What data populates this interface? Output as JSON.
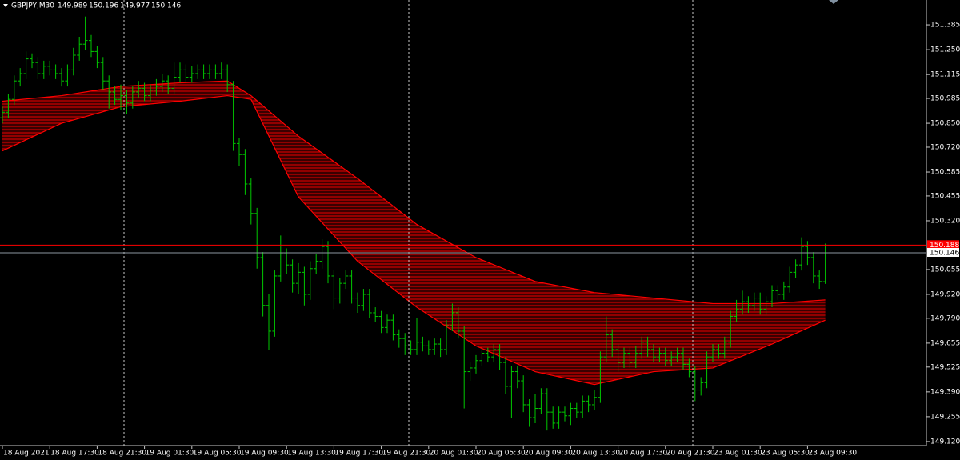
{
  "chart_data": {
    "type": "ohlc",
    "symbol": "GBPJPY,M30",
    "color": "#00c800",
    "open": [
      150.88,
      150.91,
      150.98,
      151.08,
      151.12,
      151.2,
      151.18,
      151.12,
      151.16,
      151.14,
      151.12,
      151.08,
      151.14,
      151.22,
      151.28,
      151.3,
      151.24,
      151.18,
      151.08,
      151.02,
      150.98,
      151.0,
      150.96,
      151.02,
      151.04,
      151.0,
      151.03,
      151.05,
      151.08,
      151.04,
      151.1,
      151.14,
      151.1,
      151.12,
      151.14,
      151.12,
      151.14,
      151.12,
      151.14,
      151.06,
      150.74,
      150.68,
      150.52,
      150.36,
      150.12,
      149.86,
      149.72,
      150.02,
      150.14,
      150.08,
      149.98,
      150.04,
      149.92,
      150.06,
      150.1,
      150.18,
      150.02,
      149.9,
      149.98,
      150.02,
      149.9,
      149.86,
      149.92,
      149.82,
      149.8,
      149.74,
      149.78,
      149.7,
      149.68,
      149.64,
      149.62,
      149.66,
      149.64,
      149.62,
      149.65,
      149.62,
      149.75,
      149.82,
      149.72,
      149.5,
      149.52,
      149.56,
      149.6,
      149.58,
      149.62,
      149.55,
      149.42,
      149.5,
      149.45,
      149.32,
      149.25,
      149.3,
      149.38,
      149.28,
      149.22,
      149.28,
      149.26,
      149.3,
      149.28,
      149.34,
      149.32,
      149.36,
      149.58,
      149.7,
      149.62,
      149.55,
      149.6,
      149.55,
      149.6,
      149.66,
      149.62,
      149.58,
      149.6,
      149.56,
      149.58,
      149.6,
      149.54,
      149.5,
      149.4,
      149.44,
      149.58,
      149.62,
      149.6,
      149.66,
      149.8,
      149.84,
      149.88,
      149.86,
      149.9,
      149.84,
      149.88,
      149.94,
      149.92,
      149.96,
      150.04,
      150.08,
      150.18,
      150.12,
      150.02,
      149.989
    ],
    "high": [
      150.94,
      151.01,
      151.11,
      151.15,
      151.24,
      151.23,
      151.21,
      151.19,
      151.19,
      151.17,
      151.15,
      151.17,
      151.26,
      151.32,
      151.43,
      151.33,
      151.27,
      151.21,
      151.11,
      151.05,
      151.06,
      151.03,
      151.05,
      151.08,
      151.07,
      151.06,
      151.09,
      151.12,
      151.11,
      151.18,
      151.18,
      151.17,
      151.16,
      151.17,
      151.17,
      151.17,
      151.17,
      151.18,
      151.17,
      151.08,
      150.77,
      150.71,
      150.55,
      150.39,
      150.15,
      149.92,
      150.05,
      150.24,
      150.17,
      150.11,
      150.09,
      150.07,
      150.1,
      150.14,
      150.22,
      150.21,
      150.05,
      150.01,
      150.05,
      150.05,
      149.93,
      149.95,
      149.95,
      149.85,
      149.83,
      149.81,
      149.81,
      149.73,
      149.71,
      149.67,
      149.79,
      149.69,
      149.67,
      149.68,
      149.68,
      149.78,
      149.87,
      149.85,
      149.75,
      149.55,
      149.59,
      149.63,
      149.63,
      149.65,
      149.65,
      149.58,
      149.53,
      149.53,
      149.48,
      149.35,
      149.38,
      149.41,
      149.41,
      149.31,
      149.31,
      149.31,
      149.33,
      149.33,
      149.37,
      149.37,
      149.4,
      149.61,
      149.8,
      149.73,
      149.65,
      149.63,
      149.63,
      149.64,
      149.69,
      149.69,
      149.65,
      149.63,
      149.63,
      149.61,
      149.63,
      149.63,
      149.57,
      149.53,
      149.47,
      149.61,
      149.65,
      149.65,
      149.69,
      149.83,
      149.89,
      149.94,
      149.91,
      149.93,
      149.93,
      149.91,
      149.97,
      149.97,
      149.99,
      150.07,
      150.11,
      150.23,
      150.21,
      150.15,
      150.05,
      150.196
    ],
    "low": [
      150.85,
      150.88,
      150.95,
      151.05,
      151.09,
      151.15,
      151.09,
      151.09,
      151.11,
      151.09,
      151.05,
      151.05,
      151.11,
      151.19,
      151.25,
      151.21,
      151.15,
      151.03,
      150.93,
      150.95,
      150.92,
      150.9,
      150.93,
      150.99,
      150.97,
      150.97,
      151.0,
      151.02,
      151.01,
      151.01,
      151.07,
      151.07,
      151.07,
      151.09,
      151.09,
      151.09,
      151.09,
      151.09,
      151.02,
      150.7,
      150.62,
      150.46,
      150.3,
      150.06,
      149.8,
      149.62,
      149.69,
      149.99,
      150.03,
      149.93,
      149.92,
      149.86,
      149.89,
      150.03,
      150.06,
      149.98,
      149.84,
      149.87,
      149.95,
      149.87,
      149.82,
      149.83,
      149.79,
      149.77,
      149.71,
      149.71,
      149.67,
      149.63,
      149.59,
      149.59,
      149.59,
      149.61,
      149.59,
      149.59,
      149.58,
      149.59,
      149.72,
      149.68,
      149.3,
      149.45,
      149.49,
      149.53,
      149.55,
      149.55,
      149.51,
      149.38,
      149.25,
      149.41,
      149.28,
      149.2,
      149.22,
      149.27,
      149.18,
      149.19,
      149.19,
      149.23,
      149.21,
      149.25,
      149.25,
      149.28,
      149.29,
      149.33,
      149.55,
      149.58,
      149.5,
      149.52,
      149.52,
      149.52,
      149.57,
      149.58,
      149.55,
      149.55,
      149.53,
      149.53,
      149.55,
      149.51,
      149.47,
      149.34,
      149.37,
      149.41,
      149.55,
      149.57,
      149.57,
      149.63,
      149.77,
      149.81,
      149.82,
      149.83,
      149.81,
      149.81,
      149.85,
      149.89,
      149.89,
      149.93,
      150.01,
      150.05,
      150.08,
      149.98,
      149.95,
      149.977
    ],
    "close": [
      150.91,
      150.98,
      151.08,
      151.12,
      151.2,
      151.18,
      151.12,
      151.16,
      151.14,
      151.12,
      151.08,
      151.14,
      151.22,
      151.28,
      151.3,
      151.24,
      151.18,
      151.08,
      151.02,
      150.98,
      151.0,
      150.96,
      151.02,
      151.04,
      151.0,
      151.03,
      151.05,
      151.08,
      151.04,
      151.1,
      151.14,
      151.1,
      151.12,
      151.14,
      151.12,
      151.14,
      151.12,
      151.14,
      151.06,
      150.74,
      150.68,
      150.52,
      150.36,
      150.12,
      149.86,
      149.72,
      150.02,
      150.14,
      150.08,
      149.98,
      150.04,
      149.92,
      150.06,
      150.1,
      150.18,
      150.02,
      149.9,
      149.98,
      150.02,
      149.9,
      149.86,
      149.92,
      149.82,
      149.8,
      149.74,
      149.78,
      149.7,
      149.68,
      149.64,
      149.62,
      149.66,
      149.64,
      149.62,
      149.65,
      149.62,
      149.75,
      149.82,
      149.72,
      149.5,
      149.52,
      149.56,
      149.6,
      149.58,
      149.62,
      149.55,
      149.42,
      149.5,
      149.45,
      149.32,
      149.25,
      149.3,
      149.38,
      149.28,
      149.22,
      149.28,
      149.26,
      149.3,
      149.28,
      149.34,
      149.32,
      149.36,
      149.58,
      149.7,
      149.62,
      149.55,
      149.6,
      149.55,
      149.6,
      149.66,
      149.62,
      149.58,
      149.6,
      149.56,
      149.58,
      149.6,
      149.54,
      149.5,
      149.4,
      149.44,
      149.58,
      149.62,
      149.6,
      149.66,
      149.8,
      149.84,
      149.88,
      149.86,
      149.9,
      149.84,
      149.88,
      149.94,
      149.92,
      149.96,
      150.04,
      150.08,
      150.18,
      150.12,
      150.02,
      149.99,
      150.146
    ],
    "ribbon": {
      "color": "#ff0000",
      "x": [
        0,
        10,
        20,
        30,
        38,
        42,
        50,
        60,
        70,
        80,
        90,
        100,
        110,
        120,
        130,
        139
      ],
      "upper": [
        150.97,
        151.0,
        151.05,
        151.07,
        151.08,
        151.0,
        150.78,
        150.55,
        150.3,
        150.12,
        149.99,
        149.93,
        149.9,
        149.87,
        149.87,
        149.89
      ],
      "lower": [
        150.7,
        150.85,
        150.94,
        150.97,
        151.0,
        150.98,
        150.45,
        150.1,
        149.85,
        149.64,
        149.5,
        149.43,
        149.5,
        149.52,
        149.65,
        149.78
      ]
    },
    "ask_line": {
      "value": 150.188,
      "color": "#ff0000"
    },
    "ylim": [
      149.098,
      151.52
    ],
    "yticks": [
      151.385,
      {
        "value": 151.25,
        "label": "151.250"
      },
      151.115,
      150.985,
      {
        "value": 150.85,
        "label": "150.850"
      },
      {
        "value": 150.72,
        "label": "150.720"
      },
      150.585,
      150.455,
      {
        "value": 150.32,
        "label": "150.320"
      },
      150.055,
      {
        "value": 149.92,
        "label": "149.920"
      },
      {
        "value": 149.79,
        "label": "149.790"
      },
      149.655,
      149.525,
      {
        "value": 149.39,
        "label": "149.390"
      },
      149.255,
      {
        "value": 149.12,
        "label": "149.120"
      }
    ],
    "xticks": [
      {
        "value": 0,
        "label": "18 Aug 2021"
      },
      {
        "value": 8,
        "label": "18 Aug 17:30"
      },
      {
        "value": 16,
        "label": "18 Aug 21:30"
      },
      {
        "value": 24,
        "label": "19 Aug 01:30"
      },
      {
        "value": 32,
        "label": "19 Aug 05:30"
      },
      {
        "value": 40,
        "label": "19 Aug 09:30"
      },
      {
        "value": 48,
        "label": "19 Aug 13:30"
      },
      {
        "value": 56,
        "label": "19 Aug 17:30"
      },
      {
        "value": 64,
        "label": "19 Aug 21:30"
      },
      {
        "value": 72,
        "label": "20 Aug 01:30"
      },
      {
        "value": 80,
        "label": "20 Aug 05:30"
      },
      {
        "value": 88,
        "label": "20 Aug 09:30"
      },
      {
        "value": 96,
        "label": "20 Aug 13:30"
      },
      {
        "value": 104,
        "label": "20 Aug 17:30"
      },
      {
        "value": 112,
        "label": "20 Aug 21:30"
      },
      {
        "value": 120,
        "label": "23 Aug 01:30"
      },
      {
        "value": 128,
        "label": "23 Aug 05:30"
      },
      {
        "value": 136,
        "label": "23 Aug 09:30"
      }
    ]
  }
}
